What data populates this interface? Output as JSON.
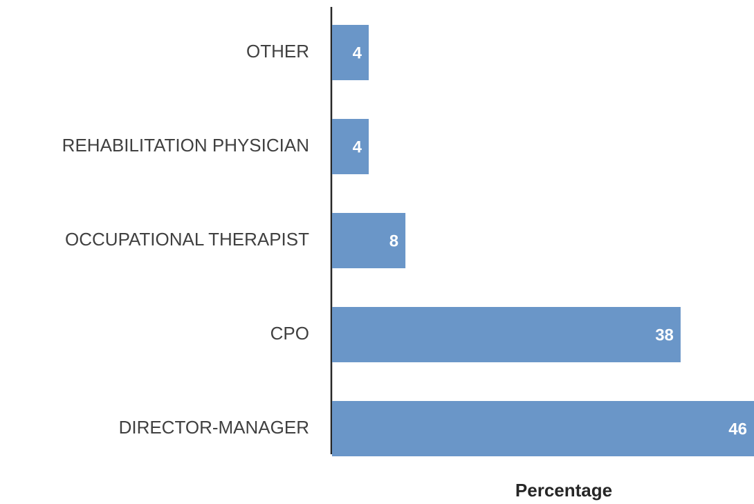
{
  "chart_data": {
    "type": "barh",
    "categories": [
      "OTHER",
      "REHABILITATION PHYSICIAN",
      "OCCUPATIONAL THERAPIST",
      "CPO",
      "DIRECTOR-MANAGER"
    ],
    "values": [
      4,
      4,
      8,
      38,
      46
    ],
    "color": "#6a96c8",
    "xlabel": "Percentage",
    "xlim": [
      0,
      46
    ]
  }
}
